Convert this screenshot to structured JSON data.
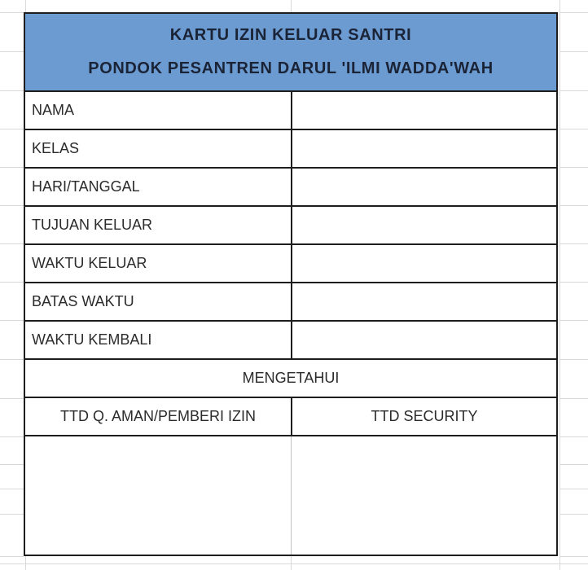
{
  "card": {
    "title": "KARTU IZIN KELUAR SANTRI",
    "subtitle": "PONDOK PESANTREN DARUL 'ILMI WADDA'WAH",
    "fields": [
      {
        "label": "NAMA",
        "value": ""
      },
      {
        "label": "KELAS",
        "value": ""
      },
      {
        "label": "HARI/TANGGAL",
        "value": ""
      },
      {
        "label": "TUJUAN KELUAR",
        "value": ""
      },
      {
        "label": "WAKTU KELUAR",
        "value": ""
      },
      {
        "label": "BATAS WAKTU",
        "value": ""
      },
      {
        "label": "WAKTU KEMBALI",
        "value": ""
      }
    ],
    "section_title": "MENGETAHUI",
    "signatures": [
      {
        "label": "TTD Q. AMAN/PEMBERI IZIN"
      },
      {
        "label": "TTD SECURITY"
      }
    ],
    "colors": {
      "header_bg": "#6C9BD2",
      "header_text": "#1B2436",
      "border": "#1D1D1D",
      "gridline": "#D9D9D9"
    }
  }
}
